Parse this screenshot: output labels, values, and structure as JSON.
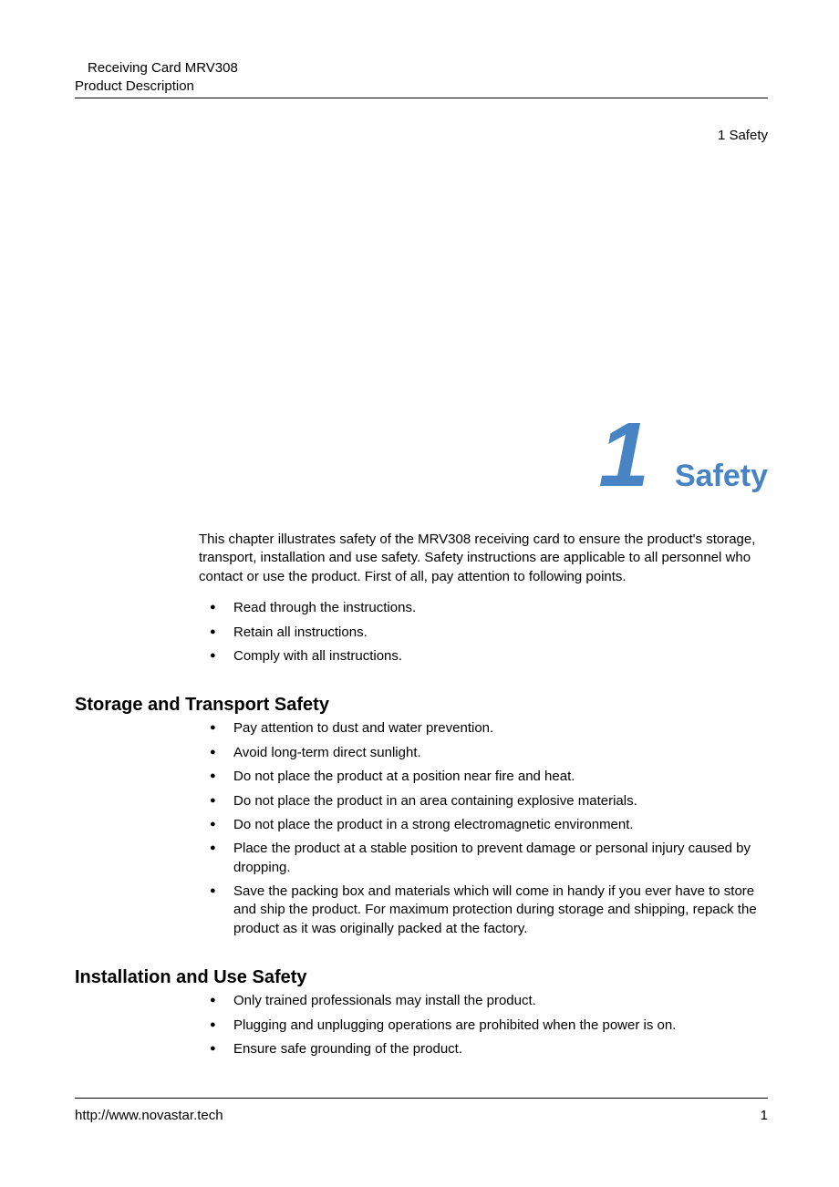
{
  "header": {
    "line1": "Receiving Card MRV308",
    "line2": "Product Description"
  },
  "breadcrumb": "1 Safety",
  "chapter": {
    "number": "1",
    "title": "Safety",
    "number_color": "#4884c4",
    "title_color": "#4884c4",
    "number_fontsize": 100,
    "title_fontsize": 34
  },
  "intro": "This chapter illustrates safety of the MRV308 receiving card to ensure the product's storage, transport, installation and use safety. Safety instructions are applicable to all personnel who contact or use the product. First of all, pay attention to following points.",
  "top_bullets": [
    "Read through the instructions.",
    "Retain all instructions.",
    "Comply with all instructions."
  ],
  "sections": [
    {
      "heading": "Storage and Transport Safety",
      "bullets": [
        "Pay attention to dust and water prevention.",
        "Avoid long-term direct sunlight.",
        "Do not place the product at a position near fire and heat.",
        "Do not place the product in an area containing explosive materials.",
        "Do not place the product in a strong electromagnetic environment.",
        "Place the product at a stable position to prevent damage or personal injury caused by dropping.",
        "Save the packing box and materials which will come in handy if you ever have to store and ship the product. For maximum protection during storage and shipping, repack the product as it was originally packed at the factory."
      ]
    },
    {
      "heading": "Installation and Use Safety",
      "bullets": [
        "Only trained professionals may install the product.",
        "Plugging and unplugging operations are prohibited when the power is on.",
        "Ensure safe grounding of the product."
      ]
    }
  ],
  "footer": {
    "url": "http://www.novastar.tech",
    "page_number": "1"
  },
  "colors": {
    "text": "#000000",
    "accent": "#4884c4",
    "background": "#ffffff",
    "rule": "#000000"
  },
  "typography": {
    "body_fontsize": 15,
    "section_heading_fontsize": 20,
    "font_family": "Arial"
  }
}
